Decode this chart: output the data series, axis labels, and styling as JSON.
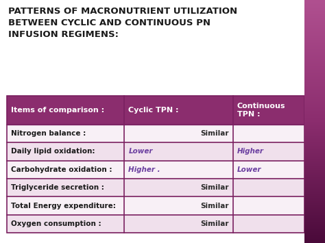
{
  "title": "PATTERNS OF MACRONUTRIENT UTILIZATION\nBETWEEN CYCLIC AND CONTINUOUS PN\nINFUSION REGIMENS:",
  "title_color": "#1a1a1a",
  "title_fontsize": 9.5,
  "bg_color": "#ffffff",
  "right_bar_colors": [
    "#5a1a4a",
    "#8B2D6E",
    "#9B3D7E"
  ],
  "header_bg": "#8B2D6E",
  "header_text_color": "#ffffff",
  "row_bg_light": "#f0e0ec",
  "row_bg_lighter": "#f8f0f6",
  "table_border_color": "#7a2060",
  "col_headers": [
    "Items of comparison :",
    "Cyclic TPN :",
    "Continuous\nTPN :"
  ],
  "rows": [
    {
      "label": "Nitrogen balance :",
      "cyclic": "Similar",
      "continuous": "",
      "cyclic_span": true
    },
    {
      "label": "Daily lipid oxidation:",
      "cyclic": "Lower",
      "continuous": "Higher",
      "cyclic_span": false
    },
    {
      "label": "Carbohydrate oxidation :",
      "cyclic": "Higher .",
      "continuous": "Lower",
      "cyclic_span": false
    },
    {
      "label": "Triglyceride secretion :",
      "cyclic": "Similar",
      "continuous": "",
      "cyclic_span": true
    },
    {
      "label": "Total Energy expenditure:",
      "cyclic": "Similar",
      "continuous": "",
      "cyclic_span": true
    },
    {
      "label": "Oxygen consumption :",
      "cyclic": "Similar",
      "continuous": "",
      "cyclic_span": true
    }
  ],
  "italic_color": "#6B3FA0",
  "similar_color": "#2a2a2a",
  "label_color": "#1a1a1a",
  "fig_width": 4.74,
  "fig_height": 3.55,
  "dpi": 100
}
